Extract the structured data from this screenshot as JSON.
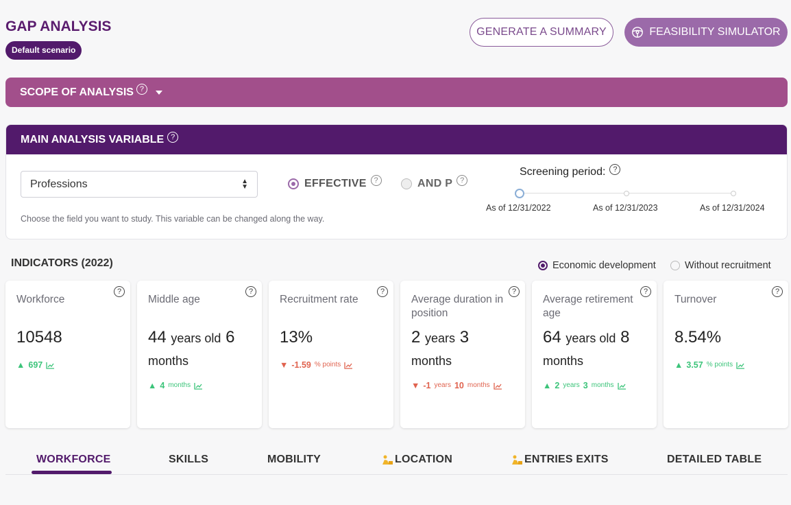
{
  "header": {
    "title": "GAP ANALYSIS",
    "scenario_badge": "Default scenario",
    "summary_button": "GENERATE A SUMMARY",
    "simulator_button": "FEASIBILITY SIMULATOR"
  },
  "scope": {
    "label": "SCOPE OF ANALYSIS",
    "help": "?"
  },
  "main_variable": {
    "label": "MAIN ANALYSIS VARIABLE",
    "help": "?",
    "select_value": "Professions",
    "hint": "Choose the field you want to study. This variable can be changed along the way.",
    "options": [
      {
        "label": "EFFECTIVE",
        "selected": true
      },
      {
        "label": "AND P",
        "selected": false
      }
    ],
    "screening": {
      "label": "Screening period:",
      "ticks": [
        "As of 12/31/2022",
        "As of 12/31/2023",
        "As of 12/31/2024"
      ],
      "selected": "As of 12/31/2022"
    }
  },
  "indicators": {
    "title": "INDICATORS (2022)",
    "modes": [
      {
        "label": "Economic development",
        "selected": true
      },
      {
        "label": "Without recruitment",
        "selected": false
      }
    ],
    "cards": [
      {
        "title": "Workforce",
        "value": "10548",
        "delta": "697",
        "direction": "up"
      },
      {
        "title": "Middle age",
        "v1": "44",
        "u1": "years old",
        "v2": "6",
        "u2": "months",
        "delta": "4",
        "delta_unit": "months",
        "direction": "up"
      },
      {
        "title": "Recruitment rate",
        "value": "13%",
        "delta": "-1.59",
        "delta_unit": "% points",
        "direction": "down"
      },
      {
        "title": "Average duration in position",
        "v1": "2",
        "u1": "years",
        "v2": "3",
        "u2": "months",
        "delta": "-1",
        "delta_u1": "years",
        "delta2": "10",
        "delta_u2": "months",
        "direction": "down"
      },
      {
        "title": "Average retirement age",
        "v1": "64",
        "u1": "years old",
        "v2": "8",
        "u2": "months",
        "delta": "2",
        "delta_u1": "years",
        "delta2": "3",
        "delta_u2": "months",
        "direction": "up"
      },
      {
        "title": "Turnover",
        "value": "8.54%",
        "delta": "3.57",
        "delta_unit": "% points",
        "direction": "up"
      }
    ]
  },
  "tabs": [
    {
      "label": "WORKFORCE",
      "active": true,
      "icon": ""
    },
    {
      "label": "SKILLS",
      "active": false,
      "icon": ""
    },
    {
      "label": "MOBILITY",
      "active": false,
      "icon": ""
    },
    {
      "label": "LOCATION",
      "active": false,
      "icon": "construction-worker-icon"
    },
    {
      "label": "ENTRIES EXITS",
      "active": false,
      "icon": "construction-worker-icon"
    },
    {
      "label": "DETAILED TABLE",
      "active": false,
      "icon": ""
    }
  ],
  "colors": {
    "primary": "#521a6b",
    "scope_bar": "#a24f8b",
    "accent": "#9b6aa9",
    "positive": "#3cc47a",
    "negative": "#e0634f"
  }
}
